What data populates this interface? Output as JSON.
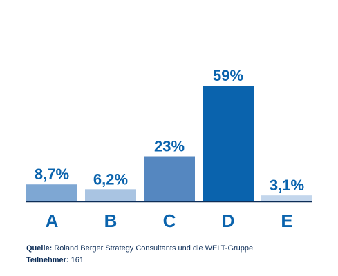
{
  "chart_data": {
    "type": "bar",
    "categories": [
      "A",
      "B",
      "C",
      "D",
      "E"
    ],
    "values": [
      8.7,
      6.2,
      23,
      59,
      3.1
    ],
    "value_labels": [
      "8,7%",
      "6,2%",
      "23%",
      "59%",
      "3,1%"
    ],
    "bar_colors": [
      "#7ea7d3",
      "#a9c4e2",
      "#5587c0",
      "#0a63ad",
      "#c3d6ec"
    ],
    "label_color": "#0a63ad",
    "axis_color": "#0d2d57",
    "ylim": [
      0,
      59
    ],
    "grid": false
  },
  "footer": {
    "source_label": "Quelle:",
    "source_text": " Roland Berger Strategy Consultants und die WELT-Gruppe",
    "participants_label": "Teilnehmer:",
    "participants_text": " 161"
  }
}
